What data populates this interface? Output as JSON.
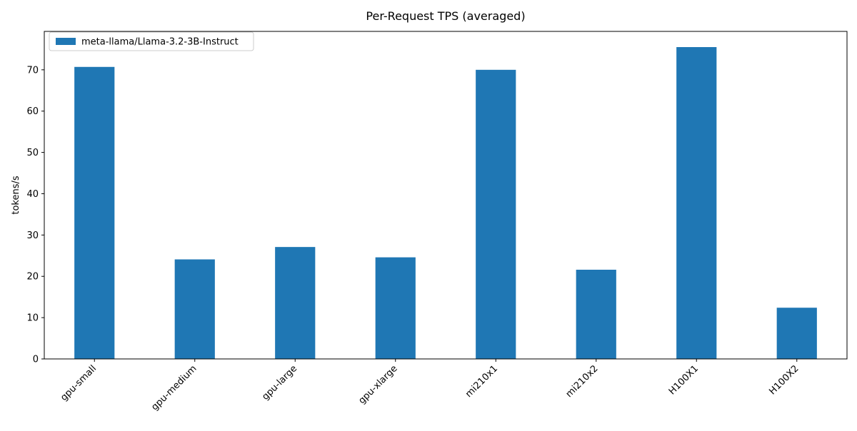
{
  "chart_data": {
    "type": "bar",
    "title": "Per-Request TPS (averaged)",
    "xlabel": "",
    "ylabel": "tokens/s",
    "categories": [
      "gpu-small",
      "gpu-medium",
      "gpu-large",
      "gpu-xlarge",
      "mi210x1",
      "mi210x2",
      "H100X1",
      "H100X2"
    ],
    "series": [
      {
        "name": "meta-llama/Llama-3.2-3B-Instruct",
        "color": "#1f77b4",
        "values": [
          70.7,
          24.1,
          27.1,
          24.6,
          70.0,
          21.6,
          75.5,
          12.4
        ]
      }
    ],
    "ylim": [
      0,
      79.3
    ],
    "yticks": [
      0,
      10,
      20,
      30,
      40,
      50,
      60,
      70
    ],
    "grid": false,
    "legend_position": "top-left"
  }
}
